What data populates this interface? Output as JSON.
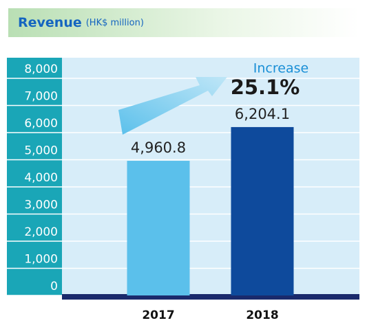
{
  "chart_data": {
    "type": "bar",
    "title": "Revenue",
    "subtitle": "(HK$ million)",
    "categories": [
      "2017",
      "2018"
    ],
    "values": [
      4960.8,
      6204.1
    ],
    "value_labels": [
      "4,960.8",
      "6,204.1"
    ],
    "colors": [
      "#5bc0eb",
      "#0e4a9c"
    ],
    "ylim": [
      0,
      8000
    ],
    "yticks": [
      0,
      {
        "value": 1000,
        "label": "1,000"
      },
      {
        "value": 2000,
        "label": "2,000"
      },
      {
        "value": 3000,
        "label": "3,000"
      },
      {
        "value": 4000,
        "label": "4,000"
      },
      {
        "value": 5000,
        "label": "5,000"
      },
      {
        "value": 6000,
        "label": "6,000"
      },
      {
        "value": 7000,
        "label": "7,000"
      },
      {
        "value": 8000,
        "label": "8,000"
      }
    ],
    "grid": true,
    "annotations": [
      "Increase",
      "25.1%"
    ]
  }
}
